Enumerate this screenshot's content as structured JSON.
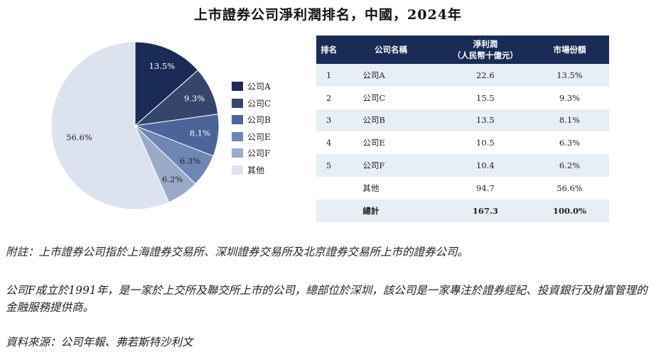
{
  "title": "上市證券公司淨利潤排名，中國，2024年",
  "chart_data": {
    "type": "pie",
    "slices": [
      {
        "label": "公司A",
        "value": 13.5,
        "display": "13.5%",
        "color": "#1a2c55"
      },
      {
        "label": "公司C",
        "value": 9.3,
        "display": "9.3%",
        "color": "#34466b"
      },
      {
        "label": "公司B",
        "value": 8.1,
        "display": "8.1%",
        "color": "#4c6499"
      },
      {
        "label": "公司E",
        "value": 6.3,
        "display": "6.3%",
        "color": "#6d86b4"
      },
      {
        "label": "公司F",
        "value": 6.2,
        "display": "6.2%",
        "color": "#9aabc8"
      },
      {
        "label": "其他",
        "value": 56.6,
        "display": "56.6%",
        "color": "#dde3ee"
      }
    ],
    "legend_position": "right"
  },
  "table": {
    "headers": {
      "rank": "排名",
      "name": "公司名稱",
      "net_profit_line1": "淨利潤",
      "net_profit_line2": "（人民幣十億元）",
      "share": "市場份額"
    },
    "rows": [
      {
        "rank": "1",
        "name": "公司A",
        "net": "22.6",
        "share": "13.5%"
      },
      {
        "rank": "2",
        "name": "公司C",
        "net": "15.5",
        "share": "9.3%"
      },
      {
        "rank": "3",
        "name": "公司B",
        "net": "13.5",
        "share": "8.1%"
      },
      {
        "rank": "4",
        "name": "公司E",
        "net": "10.5",
        "share": "6.3%"
      },
      {
        "rank": "5",
        "name": "公司F",
        "net": "10.4",
        "share": "6.2%"
      }
    ],
    "other": {
      "name": "其他",
      "net": "94.7",
      "share": "56.6%"
    },
    "total": {
      "name": "總計",
      "net": "167.3",
      "share": "100.0%"
    }
  },
  "notes": {
    "note1": "附註：上市證券公司指於上海證券交易所、深圳證券交易所及北京證券交易所上市的證券公司。",
    "note2": "公司F成立於1991年，是一家於上交所及聯交所上市的公司，總部位於深圳，該公司是一家專注於證券經紀、投資銀行及財富管理的金融服務提供商。",
    "source": "資料來源：公司年報、弗若斯特沙利文"
  }
}
